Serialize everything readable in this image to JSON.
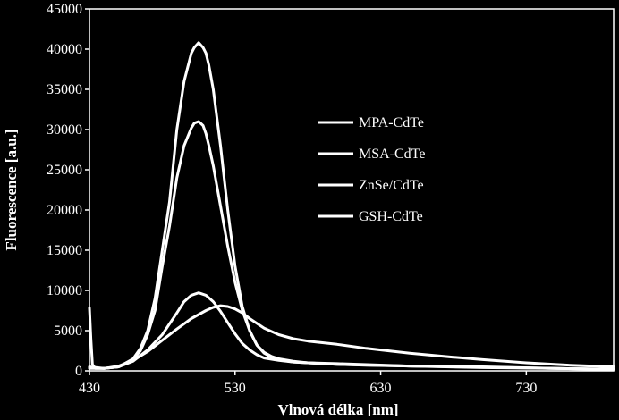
{
  "chart_data": {
    "type": "line",
    "title": "",
    "xlabel": "Vlnová délka [nm]",
    "ylabel": "Fluorescence [a.u.]",
    "xlim": [
      430,
      790
    ],
    "ylim": [
      0,
      45000
    ],
    "xticks": [
      430,
      530,
      630,
      730
    ],
    "yticks": [
      0,
      5000,
      10000,
      15000,
      20000,
      25000,
      30000,
      35000,
      40000,
      45000
    ],
    "grid": false,
    "legend": "center-right",
    "line_color": "#ffffff",
    "background": "#000000",
    "series": [
      {
        "name": "MPA-CdTe",
        "x": [
          430,
          440,
          450,
          460,
          465,
          470,
          475,
          480,
          485,
          490,
          495,
          500,
          502,
          505,
          508,
          510,
          512,
          515,
          520,
          525,
          530,
          535,
          540,
          545,
          550,
          555,
          560,
          570,
          580,
          590,
          600,
          620,
          650,
          700,
          750,
          790
        ],
        "y": [
          500,
          300,
          500,
          1500,
          2800,
          5000,
          9000,
          15000,
          21000,
          30000,
          36000,
          39500,
          40200,
          40800,
          40200,
          39500,
          38000,
          35000,
          28000,
          20000,
          13000,
          8000,
          5000,
          3200,
          2200,
          1700,
          1400,
          1100,
          1000,
          900,
          800,
          700,
          600,
          500,
          300,
          200
        ]
      },
      {
        "name": "MSA-CdTe",
        "x": [
          430,
          440,
          450,
          460,
          465,
          470,
          475,
          480,
          485,
          490,
          495,
          500,
          502,
          505,
          508,
          510,
          512,
          515,
          520,
          525,
          530,
          535,
          540,
          545,
          550,
          555,
          560,
          570,
          580,
          600,
          650,
          700,
          750,
          790
        ],
        "y": [
          400,
          300,
          500,
          1400,
          2500,
          4500,
          7500,
          13000,
          18000,
          24000,
          28000,
          30200,
          30800,
          31000,
          30500,
          29500,
          28000,
          25500,
          20500,
          15500,
          11000,
          7500,
          5000,
          3200,
          2300,
          1800,
          1500,
          1200,
          1000,
          800,
          600,
          450,
          300,
          200
        ]
      },
      {
        "name": "ZnSe/CdTe",
        "x": [
          430,
          440,
          450,
          460,
          470,
          480,
          490,
          495,
          500,
          505,
          510,
          515,
          520,
          525,
          530,
          535,
          540,
          545,
          550,
          560,
          570,
          580,
          600,
          650,
          700,
          750,
          790
        ],
        "y": [
          300,
          300,
          500,
          1200,
          2600,
          4500,
          7200,
          8600,
          9400,
          9700,
          9400,
          8600,
          7400,
          6000,
          4600,
          3400,
          2600,
          2000,
          1600,
          1300,
          1100,
          1000,
          900,
          600,
          400,
          300,
          200
        ]
      },
      {
        "name": "GSH-CdTe",
        "x": [
          430,
          431,
          432,
          434,
          440,
          450,
          460,
          470,
          480,
          490,
          500,
          510,
          515,
          520,
          525,
          530,
          535,
          540,
          550,
          560,
          570,
          580,
          600,
          620,
          650,
          680,
          700,
          730,
          760,
          790
        ],
        "y": [
          7800,
          4000,
          800,
          300,
          300,
          600,
          1300,
          2400,
          3800,
          5200,
          6500,
          7500,
          7900,
          8100,
          8000,
          7700,
          7200,
          6500,
          5300,
          4500,
          4000,
          3700,
          3300,
          2800,
          2200,
          1700,
          1400,
          1000,
          700,
          500
        ]
      }
    ]
  }
}
